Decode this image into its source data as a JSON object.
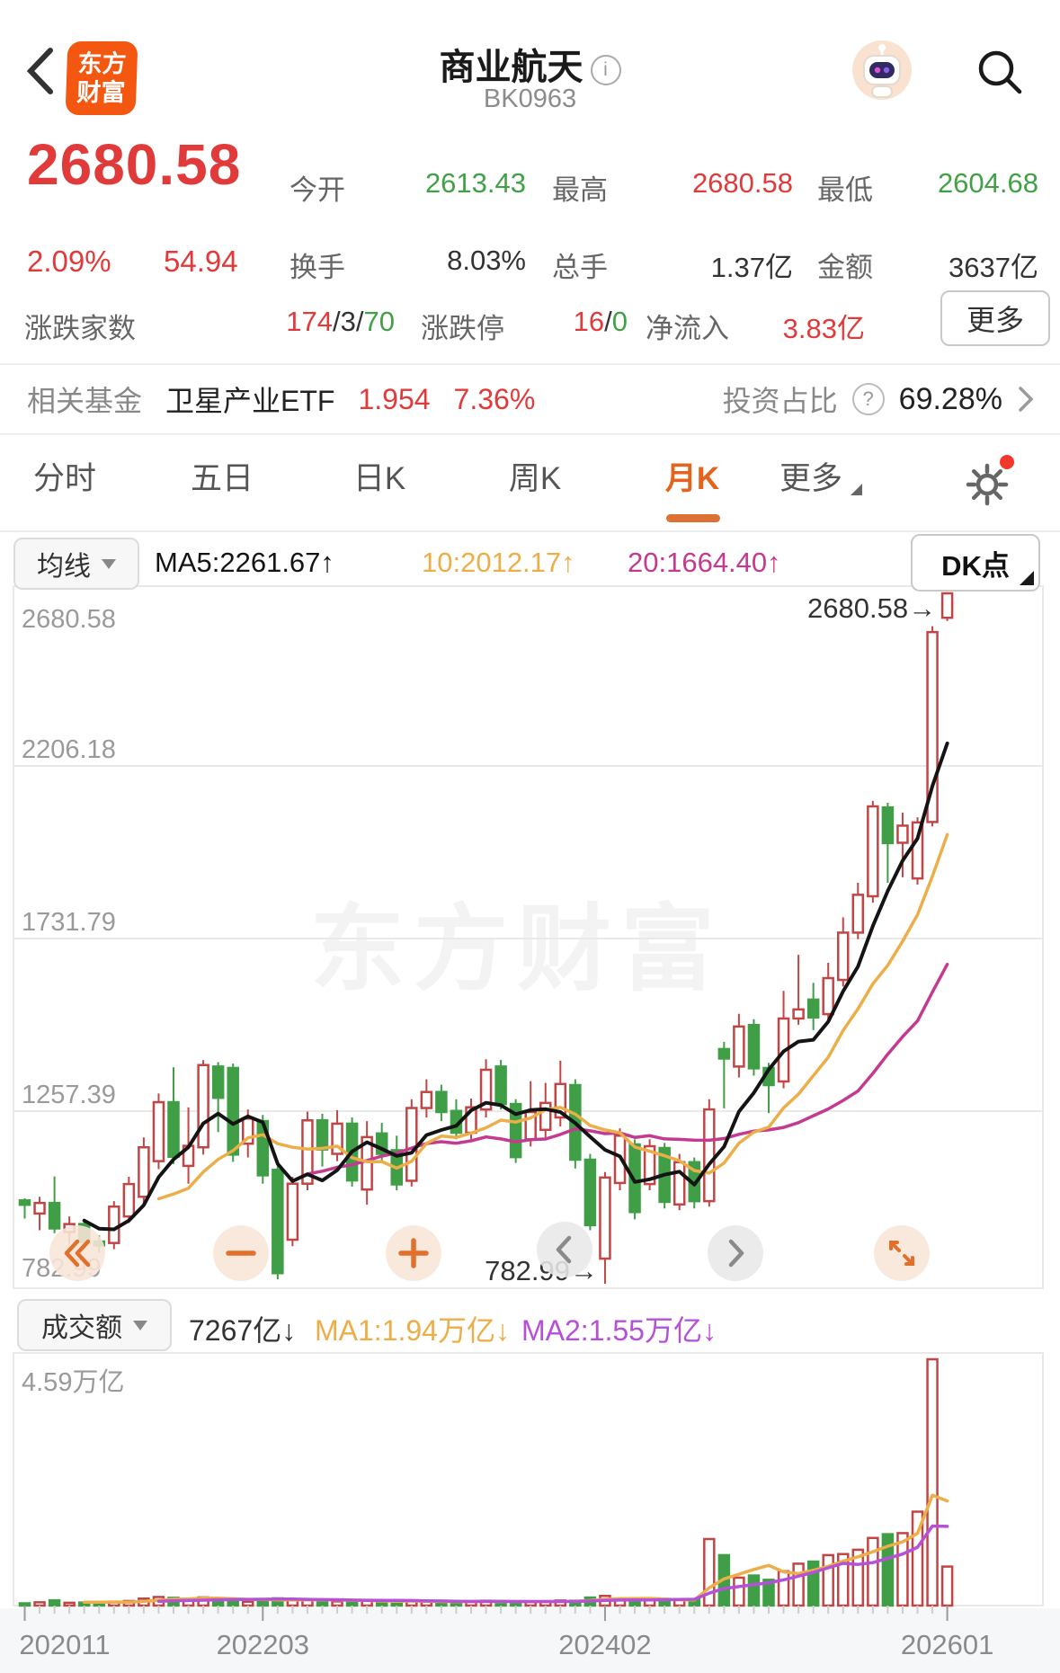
{
  "header": {
    "title": "商业航天",
    "code": "BK0963",
    "logo_line1": "东方",
    "logo_line2": "财富"
  },
  "quote": {
    "price": "2680.58",
    "change_pct": "2.09%",
    "change": "54.94",
    "row1": [
      {
        "label": "今开",
        "value": "2613.43"
      },
      {
        "label": "最高",
        "value": "2680.58"
      },
      {
        "label": "最低",
        "value": "2604.68"
      }
    ],
    "row2": [
      {
        "label": "换手",
        "value": "8.03%"
      },
      {
        "label": "总手",
        "value": "1.37亿"
      },
      {
        "label": "金额",
        "value": "3637亿"
      }
    ],
    "row3": {
      "adv_label": "涨跌家数",
      "adv_parts": [
        [
          "174",
          "up"
        ],
        [
          "/",
          "plain"
        ],
        [
          "3",
          "plain"
        ],
        [
          "/",
          "plain"
        ],
        [
          "70",
          "down"
        ]
      ],
      "limit_label": "涨跌停",
      "limit_parts": [
        [
          "16",
          "up"
        ],
        [
          "/",
          "plain"
        ],
        [
          "0",
          "down"
        ]
      ],
      "inflow_label": "净流入",
      "inflow_value": "3.83亿",
      "more_label": "更多"
    }
  },
  "fund": {
    "label": "相关基金",
    "name": "卫星产业ETF",
    "nav": "1.954",
    "pct": "7.36%",
    "ratio_label": "投资占比",
    "ratio_value": "69.28%"
  },
  "tabs": {
    "items": [
      "分时",
      "五日",
      "日K",
      "周K",
      "月K",
      "更多"
    ],
    "active": "月K"
  },
  "ma_toolbar": {
    "selector": "均线",
    "ma5": "MA5:2261.67↑",
    "ma10": "10:2012.17↑",
    "ma20": "20:1664.40↑",
    "dk": "DK点"
  },
  "vol_toolbar": {
    "selector": "成交额",
    "value": "7267亿↓",
    "ma1": "MA1:1.94万亿↓",
    "ma2": "MA2:1.55万亿↓"
  },
  "colors": {
    "up": "#c24545",
    "down": "#3f9e46",
    "text_up": "#e03a3a",
    "text_down": "#42a147",
    "ma5": "#141414",
    "ma10": "#ecae48",
    "ma20": "#c43a90",
    "vol_ma1": "#ecae48",
    "vol_ma2": "#b650d8",
    "accent": "#e5631d",
    "logo_bg": "#f4570f",
    "grid": "#e9e9e9"
  },
  "chart_data": {
    "type": "candlestick",
    "period": "monthly",
    "watermark": "东方财富",
    "ylim": [
      782.99,
      2680.58
    ],
    "y_ticks": [
      {
        "label": "2680.58",
        "value": 2680.58
      },
      {
        "label": "2206.18",
        "value": 2206.18
      },
      {
        "label": "1731.79",
        "value": 1731.79
      },
      {
        "label": "1257.39",
        "value": 1257.39
      },
      {
        "label": "782.99",
        "value": 782.99
      }
    ],
    "x_axis_labels": [
      {
        "label": "202011",
        "index": 0
      },
      {
        "label": "202203",
        "index": 16
      },
      {
        "label": "202402",
        "index": 39
      },
      {
        "label": "202601",
        "index": 62
      }
    ],
    "annotation_high": "2680.58→",
    "annotation_low": "782.99→",
    "high_annotation_index": 62,
    "low_annotation_index": 39,
    "volume_axis_max_label": "4.59万亿",
    "volume_max": 45900,
    "price_ma_periods": [
      5,
      10,
      20
    ],
    "volume_ma_periods": [
      5,
      10
    ],
    "candles_format": [
      "open",
      "close",
      "high",
      "low",
      "volume_yi"
    ],
    "candles": [
      [
        1012,
        1000,
        1018,
        962,
        420
      ],
      [
        976,
        1005,
        1022,
        930,
        610
      ],
      [
        1005,
        935,
        1078,
        922,
        980
      ],
      [
        925,
        947,
        968,
        893,
        520
      ],
      [
        947,
        897,
        955,
        878,
        560
      ],
      [
        899,
        888,
        916,
        868,
        480
      ],
      [
        895,
        995,
        1010,
        878,
        720
      ],
      [
        968,
        1057,
        1077,
        950,
        850
      ],
      [
        1022,
        1158,
        1185,
        1002,
        1300
      ],
      [
        1120,
        1282,
        1306,
        1098,
        1600
      ],
      [
        1282,
        1132,
        1378,
        1112,
        1450
      ],
      [
        1107,
        1162,
        1268,
        1058,
        1000
      ],
      [
        1158,
        1384,
        1398,
        1138,
        1520
      ],
      [
        1380,
        1294,
        1392,
        1200,
        1280
      ],
      [
        1376,
        1138,
        1388,
        1118,
        1100
      ],
      [
        1168,
        1237,
        1262,
        1130,
        720
      ],
      [
        1230,
        1081,
        1247,
        1058,
        950
      ],
      [
        1096,
        812,
        1110,
        795,
        1350
      ],
      [
        904,
        1058,
        1077,
        886,
        1050
      ],
      [
        1058,
        1232,
        1256,
        1040,
        1200
      ],
      [
        1232,
        1152,
        1250,
        1105,
        900
      ],
      [
        1140,
        1223,
        1260,
        1120,
        780
      ],
      [
        1223,
        1067,
        1240,
        1050,
        820
      ],
      [
        1042,
        1186,
        1230,
        1000,
        1000
      ],
      [
        1196,
        1140,
        1225,
        1120,
        760
      ],
      [
        1150,
        1056,
        1190,
        1040,
        700
      ],
      [
        1066,
        1266,
        1290,
        1050,
        880
      ],
      [
        1266,
        1310,
        1345,
        1240,
        760
      ],
      [
        1310,
        1255,
        1330,
        1230,
        700
      ],
      [
        1258,
        1198,
        1290,
        1180,
        650
      ],
      [
        1198,
        1268,
        1292,
        1180,
        720
      ],
      [
        1262,
        1371,
        1400,
        1240,
        900
      ],
      [
        1380,
        1277,
        1398,
        1262,
        820
      ],
      [
        1277,
        1131,
        1290,
        1115,
        700
      ],
      [
        1180,
        1255,
        1340,
        1160,
        650
      ],
      [
        1206,
        1280,
        1335,
        1185,
        720
      ],
      [
        1240,
        1332,
        1396,
        1215,
        950
      ],
      [
        1329,
        1124,
        1345,
        1100,
        900
      ],
      [
        1124,
        944,
        1140,
        930,
        1500
      ],
      [
        852,
        1075,
        1090,
        783,
        1800
      ],
      [
        1060,
        1190,
        1210,
        1040,
        1300
      ],
      [
        1166,
        980,
        1180,
        960,
        1100
      ],
      [
        1057,
        1161,
        1180,
        1040,
        1000
      ],
      [
        1156,
        1008,
        1170,
        990,
        950
      ],
      [
        1001,
        1117,
        1140,
        985,
        1050
      ],
      [
        1117,
        1010,
        1130,
        990,
        1100
      ],
      [
        1010,
        1262,
        1290,
        995,
        12400
      ],
      [
        1428,
        1402,
        1448,
        1265,
        9400
      ],
      [
        1380,
        1490,
        1525,
        1350,
        5200
      ],
      [
        1494,
        1375,
        1510,
        1355,
        5600
      ],
      [
        1376,
        1329,
        1390,
        1252,
        4800
      ],
      [
        1339,
        1512,
        1588,
        1320,
        6400
      ],
      [
        1512,
        1537,
        1687,
        1495,
        7800
      ],
      [
        1564,
        1515,
        1610,
        1480,
        8200
      ],
      [
        1524,
        1623,
        1665,
        1505,
        9400
      ],
      [
        1618,
        1748,
        1790,
        1600,
        9600
      ],
      [
        1748,
        1852,
        1885,
        1730,
        10400
      ],
      [
        1848,
        2095,
        2110,
        1830,
        12600
      ],
      [
        2092,
        1994,
        2105,
        1885,
        13300
      ],
      [
        1995,
        2042,
        2078,
        1900,
        13500
      ],
      [
        1897,
        2051,
        2065,
        1880,
        17500
      ],
      [
        2052,
        2574,
        2590,
        2040,
        45900
      ],
      [
        2613.43,
        2680.58,
        2680.58,
        2604.68,
        7267
      ]
    ]
  }
}
